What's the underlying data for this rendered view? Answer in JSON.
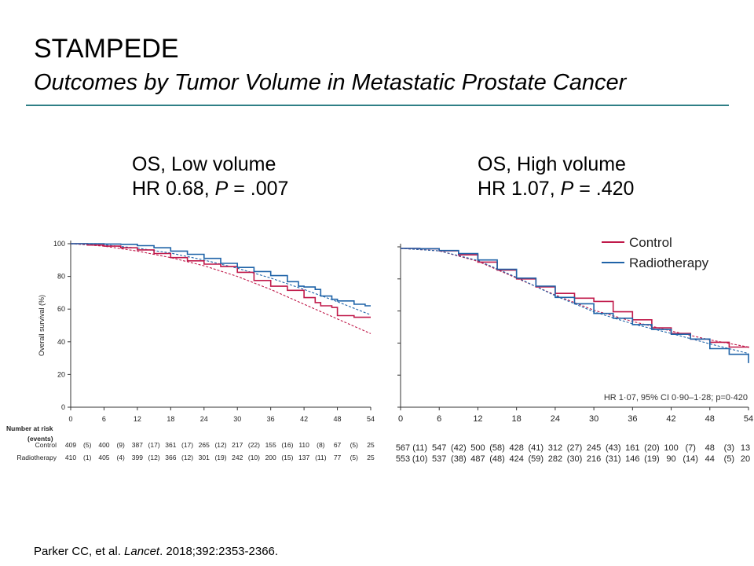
{
  "slide": {
    "title": "STAMPEDE",
    "subtitle": "Outcomes by Tumor Volume in Metastatic Prostate Cancer"
  },
  "citation": {
    "authors": "Parker CC, et al. ",
    "journal": "Lancet",
    "details": ". 2018;392:2353-2366."
  },
  "colors": {
    "control": "#c0194a",
    "radiotherapy": "#1f63a8",
    "rule": "#2f7f86"
  },
  "chart_data": [
    {
      "type": "line",
      "panel_heading": {
        "line1": "OS, Low volume",
        "hr_prefix": "HR 0.68, ",
        "p_symbol": "P",
        "p_value": " = .007"
      },
      "ylabel": "Overall survival (%)",
      "ylim": [
        0,
        100
      ],
      "xlim": [
        0,
        54
      ],
      "xticks": [
        0,
        6,
        12,
        18,
        24,
        30,
        36,
        42,
        48,
        54
      ],
      "yticks": [
        0,
        20,
        40,
        60,
        80,
        100
      ],
      "series": [
        {
          "name": "Control",
          "color": "#c0194a",
          "x": [
            0,
            3,
            6,
            9,
            12,
            15,
            18,
            21,
            24,
            27,
            30,
            33,
            36,
            39,
            42,
            44,
            45,
            47,
            48,
            50,
            51,
            54
          ],
          "y": [
            100,
            99.2,
            98.5,
            97.5,
            96.2,
            94,
            91.5,
            89.5,
            87.5,
            86,
            82.5,
            77.5,
            74,
            71.5,
            67,
            64,
            62,
            61,
            56,
            56,
            55,
            55
          ]
        },
        {
          "name": "Radiotherapy",
          "color": "#1f63a8",
          "x": [
            0,
            6,
            9,
            12,
            15,
            18,
            21,
            24,
            27,
            30,
            33,
            36,
            39,
            41,
            42,
            44,
            45,
            47,
            48,
            50,
            51,
            53,
            54
          ],
          "y": [
            100,
            99.8,
            99.6,
            98.8,
            97.5,
            95.5,
            93.5,
            91,
            88,
            85.5,
            83,
            80.5,
            76.8,
            74,
            73.5,
            72,
            68,
            66,
            65,
            65,
            63,
            62,
            62
          ]
        }
      ],
      "fitted_curves": [
        {
          "color": "#c0194a",
          "x": [
            0,
            6,
            12,
            18,
            24,
            30,
            36,
            42,
            48,
            54
          ],
          "y": [
            100,
            98.5,
            95.5,
            91.5,
            86.5,
            80,
            72,
            63,
            54,
            45
          ]
        },
        {
          "color": "#1f63a8",
          "x": [
            0,
            6,
            12,
            18,
            24,
            30,
            36,
            42,
            48,
            54
          ],
          "y": [
            100,
            99.3,
            97.3,
            94.3,
            90,
            85,
            79,
            72,
            64.5,
            56.5
          ]
        }
      ],
      "risk_table": {
        "header_line1": "Number at risk",
        "header_line2": "(events)",
        "rows": [
          {
            "label": "Control",
            "values": [
              "409",
              "(5)",
              "400",
              "(9)",
              "387",
              "(17)",
              "361",
              "(17)",
              "265",
              "(12)",
              "217",
              "(22)",
              "155",
              "(16)",
              "110",
              "(8)",
              "67",
              "(5)",
              "25"
            ]
          },
          {
            "label": "Radiotherapy",
            "values": [
              "410",
              "(1)",
              "405",
              "(4)",
              "399",
              "(12)",
              "366",
              "(12)",
              "301",
              "(19)",
              "242",
              "(10)",
              "200",
              "(15)",
              "137",
              "(11)",
              "77",
              "(5)",
              "25"
            ]
          }
        ]
      }
    },
    {
      "type": "line",
      "panel_heading": {
        "line1": "OS, High volume",
        "hr_prefix": "HR 1.07, ",
        "p_symbol": "P",
        "p_value": " = .420"
      },
      "ylim": [
        0,
        100
      ],
      "xlim": [
        0,
        54
      ],
      "xticks": [
        0,
        6,
        12,
        18,
        24,
        30,
        36,
        42,
        48,
        54
      ],
      "legend": {
        "placement": "top-right",
        "entries": [
          "Control",
          "Radiotherapy"
        ]
      },
      "partial_annotation": "HR 1·07, 95% CI 0·90–1·28; p=0·420",
      "series": [
        {
          "name": "Control",
          "color": "#c0194a",
          "x": [
            0,
            3,
            6,
            9,
            12,
            15,
            18,
            21,
            24,
            27,
            30,
            33,
            36,
            39,
            42,
            45,
            48,
            51,
            54
          ],
          "y": [
            99,
            98.8,
            97.5,
            95,
            90.5,
            85.5,
            80,
            75,
            71,
            68,
            66,
            59.5,
            54.5,
            49.5,
            46,
            42.5,
            40.5,
            37.5,
            37
          ]
        },
        {
          "name": "Radiotherapy",
          "color": "#1f63a8",
          "x": [
            0,
            3,
            6,
            9,
            12,
            15,
            18,
            21,
            24,
            27,
            30,
            33,
            36,
            39,
            42,
            45,
            48,
            51,
            54
          ],
          "y": [
            99,
            98.8,
            97.7,
            95.8,
            91.8,
            86,
            80.5,
            75.5,
            68.5,
            64.5,
            58.5,
            55.5,
            51.5,
            48.5,
            45.5,
            42.5,
            36.5,
            33,
            27.5
          ]
        }
      ],
      "fitted_curves": [
        {
          "color": "#c0194a",
          "x": [
            0,
            6,
            12,
            18,
            24,
            30,
            36,
            42,
            48,
            54
          ],
          "y": [
            99,
            97.5,
            91,
            80.5,
            70,
            60.5,
            53.5,
            47.5,
            42,
            37.5
          ]
        },
        {
          "color": "#1f63a8",
          "x": [
            0,
            6,
            12,
            18,
            24,
            30,
            36,
            42,
            48,
            54
          ],
          "y": [
            99,
            97.5,
            91.5,
            81,
            69.5,
            59.5,
            52,
            46,
            39.5,
            33.5
          ]
        }
      ],
      "risk_table": {
        "rows": [
          {
            "label": "Control",
            "values": [
              "567",
              "(11)",
              "547",
              "(42)",
              "500",
              "(58)",
              "428",
              "(41)",
              "312",
              "(27)",
              "245",
              "(43)",
              "161",
              "(20)",
              "100",
              "(7)",
              "48",
              "(3)",
              "13"
            ]
          },
          {
            "label": "Radiotherapy",
            "values": [
              "553",
              "(10)",
              "537",
              "(38)",
              "487",
              "(48)",
              "424",
              "(59)",
              "282",
              "(30)",
              "216",
              "(31)",
              "146",
              "(19)",
              "90",
              "(14)",
              "44",
              "(5)",
              "20"
            ]
          }
        ]
      }
    }
  ]
}
